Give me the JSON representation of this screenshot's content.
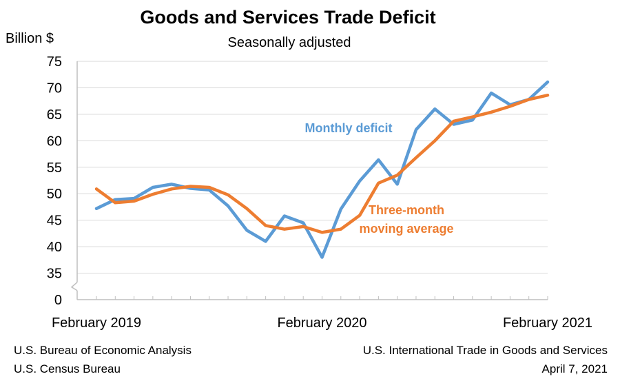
{
  "chart_data": {
    "type": "line",
    "title": "Goods and Services Trade Deficit",
    "subtitle": "Seasonally adjusted",
    "ylabel": "Billion $",
    "ylim": [
      30,
      75
    ],
    "y_axis_break": true,
    "yticks": [
      "0",
      "35",
      "40",
      "45",
      "50",
      "55",
      "60",
      "65",
      "70",
      "75"
    ],
    "ytick_values": [
      30,
      35,
      40,
      45,
      50,
      55,
      60,
      65,
      70,
      75
    ],
    "x": [
      "Feb 2019",
      "Mar 2019",
      "Apr 2019",
      "May 2019",
      "Jun 2019",
      "Jul 2019",
      "Aug 2019",
      "Sep 2019",
      "Oct 2019",
      "Nov 2019",
      "Dec 2019",
      "Jan 2020",
      "Feb 2020",
      "Mar 2020",
      "Apr 2020",
      "May 2020",
      "Jun 2020",
      "Jul 2020",
      "Aug 2020",
      "Sep 2020",
      "Oct 2020",
      "Nov 2020",
      "Dec 2020",
      "Jan 2021",
      "Feb 2021"
    ],
    "xtick_labels": [
      {
        "label": "February 2019",
        "index": 0
      },
      {
        "label": "February 2020",
        "index": 12
      },
      {
        "label": "February 2021",
        "index": 24
      }
    ],
    "grid": true,
    "series": [
      {
        "name": "Monthly deficit",
        "color": "#5b9bd5",
        "values": [
          47.2,
          48.9,
          49.1,
          51.2,
          51.8,
          51.0,
          50.7,
          47.7,
          43.1,
          41.0,
          45.8,
          44.5,
          38.0,
          47.1,
          52.4,
          56.4,
          51.8,
          62.1,
          66.0,
          63.1,
          63.9,
          69.0,
          66.8,
          67.8,
          71.1
        ]
      },
      {
        "name": "Three-month moving average",
        "color": "#ed7d31",
        "values": [
          50.9,
          48.3,
          48.6,
          49.9,
          50.9,
          51.4,
          51.2,
          49.8,
          47.2,
          44.0,
          43.3,
          43.8,
          42.7,
          43.3,
          45.9,
          52.0,
          53.5,
          56.8,
          60.0,
          63.7,
          64.5,
          65.4,
          66.5,
          67.8,
          68.6
        ]
      }
    ],
    "annotations": [
      {
        "text": "Monthly deficit",
        "series": 0
      },
      {
        "text": "Three-month",
        "series": 1
      },
      {
        "text": "moving average",
        "series": 1
      }
    ]
  },
  "footer": {
    "left_line1": "U.S. Bureau of Economic Analysis",
    "left_line2": "U.S. Census Bureau",
    "right_line1": "U.S. International Trade in Goods and Services",
    "right_line2": "April 7, 2021"
  }
}
